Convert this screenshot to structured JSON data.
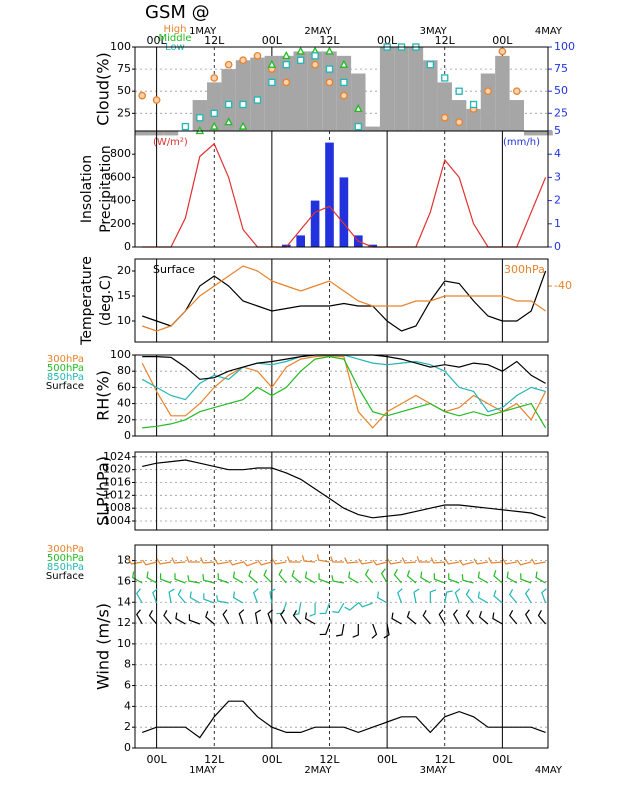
{
  "title": "GSM  @",
  "time": {
    "x": [
      -3,
      0,
      3,
      6,
      9,
      12,
      15,
      18,
      21,
      24,
      27,
      30,
      33,
      36,
      39,
      42,
      45,
      48,
      51,
      54,
      57,
      60,
      63,
      66,
      69,
      72,
      75,
      78,
      81
    ],
    "xlim": [
      -4.5,
      81.5
    ],
    "xticks": [
      {
        "value": 0,
        "label": "00L"
      },
      {
        "value": 12,
        "label": "12L"
      },
      {
        "value": 24,
        "label": "00L"
      },
      {
        "value": 36,
        "label": "12L"
      },
      {
        "value": 48,
        "label": "00L"
      },
      {
        "value": 60,
        "label": "12L"
      },
      {
        "value": 72,
        "label": "00L"
      }
    ],
    "day_labels": [
      {
        "value": 12,
        "label": "1MAY"
      },
      {
        "value": 36,
        "label": "2MAY"
      },
      {
        "value": 60,
        "label": "3MAY"
      },
      {
        "value": 84,
        "label": "4MAY"
      }
    ]
  },
  "chart_data": [
    {
      "type": "combo",
      "ylabel": [
        "Cloud(%)"
      ],
      "ylim": [
        5,
        100
      ],
      "yticks": [
        25,
        50,
        75,
        100
      ],
      "y2lim": [
        5,
        100
      ],
      "y2ticks": [
        5,
        25,
        50,
        75,
        100
      ],
      "y2_color": "#2233dd",
      "grid": true,
      "legend": "top",
      "series": [
        {
          "type": "bar",
          "color": "#a6a6a6",
          "values": [
            0,
            0,
            0,
            5,
            40,
            60,
            75,
            85,
            88,
            90,
            90,
            95,
            95,
            95,
            90,
            70,
            10,
            100,
            100,
            100,
            85,
            60,
            40,
            30,
            70,
            90,
            40,
            0,
            0
          ]
        },
        {
          "type": "scatter",
          "name": "High",
          "color": "#e8822a",
          "marker": "circle",
          "values": [
            45,
            40,
            null,
            null,
            null,
            65,
            80,
            85,
            90,
            75,
            60,
            85,
            80,
            60,
            45,
            null,
            null,
            null,
            null,
            null,
            null,
            20,
            15,
            30,
            50,
            95,
            50,
            null,
            null
          ]
        },
        {
          "type": "scatter",
          "name": "Middle",
          "color": "#22bb22",
          "marker": "triangle",
          "values": [
            null,
            null,
            null,
            null,
            5,
            10,
            15,
            10,
            null,
            80,
            90,
            95,
            95,
            95,
            80,
            30,
            null,
            null,
            null,
            null,
            null,
            null,
            null,
            null,
            null,
            null,
            null,
            null,
            null
          ]
        },
        {
          "type": "scatter",
          "name": "Low",
          "color": "#22b5b5",
          "marker": "square",
          "values": [
            null,
            null,
            null,
            10,
            20,
            25,
            35,
            35,
            40,
            60,
            80,
            85,
            90,
            75,
            60,
            10,
            null,
            100,
            100,
            100,
            80,
            65,
            50,
            35,
            null,
            null,
            null,
            null,
            null
          ]
        }
      ]
    },
    {
      "type": "combo",
      "ylabel": [
        "Insolation",
        "Precipitation"
      ],
      "ylim": [
        0,
        1000
      ],
      "yticks": [
        0,
        200,
        400,
        600,
        800
      ],
      "y2lim": [
        0,
        5
      ],
      "y2ticks": [
        0,
        1,
        2,
        3,
        4
      ],
      "y2_color": "#2233dd",
      "grid": false,
      "annotations": [
        {
          "text": "(W/m²)",
          "color": "#e03030",
          "side": "left"
        },
        {
          "text": "(mm/h)",
          "color": "#2233dd",
          "side": "right"
        }
      ],
      "series": [
        {
          "type": "bar",
          "axis": "y2",
          "color": "#2233dd",
          "values": [
            0,
            0,
            0,
            0,
            0,
            0,
            0,
            0,
            0,
            0,
            0.1,
            0.5,
            2,
            4.5,
            3,
            0.5,
            0.1,
            0,
            0,
            0,
            0,
            0,
            0,
            0,
            0,
            0,
            0,
            0,
            0
          ]
        },
        {
          "type": "line",
          "color": "#e03030",
          "values": [
            0,
            0,
            0,
            250,
            780,
            890,
            600,
            150,
            0,
            0,
            0,
            150,
            300,
            350,
            200,
            50,
            0,
            0,
            0,
            0,
            300,
            750,
            600,
            200,
            0,
            0,
            0,
            300,
            600
          ]
        }
      ]
    },
    {
      "type": "combo",
      "ylabel": [
        "Temperature",
        "(deg.C)"
      ],
      "ylim": [
        5.8,
        22.4
      ],
      "yticks": [
        10,
        15,
        20
      ],
      "y2lim": [
        -51.2,
        -34.6
      ],
      "y2ticks": [
        -40
      ],
      "y2_color": "#e8822a",
      "grid": false,
      "legend": "inside",
      "series": [
        {
          "type": "line",
          "name": "Surface",
          "color": "#000000",
          "values": [
            11,
            10,
            9,
            12,
            17,
            19,
            17,
            14,
            13,
            12,
            12.5,
            13,
            13,
            13,
            13.5,
            13,
            13,
            10,
            8,
            9,
            14,
            18,
            17.5,
            14,
            11,
            10,
            10,
            12,
            20
          ]
        },
        {
          "type": "line",
          "name": "300hPa",
          "axis": "y2",
          "color": "#e8822a",
          "values": [
            -48,
            -49,
            -48,
            -45,
            -42,
            -40,
            -38,
            -36,
            -37,
            -39,
            -40,
            -41,
            -40,
            -39,
            -41,
            -43,
            -44,
            -44,
            -44,
            -43,
            -43,
            -42,
            -42,
            -42,
            -42,
            -42,
            -43,
            -43,
            -45
          ]
        }
      ]
    },
    {
      "type": "combo",
      "ylabel": [
        "RH(%)"
      ],
      "ylim": [
        0,
        100
      ],
      "yticks": [
        0,
        20,
        40,
        60,
        80,
        100
      ],
      "grid": true,
      "legend": "left",
      "series": [
        {
          "type": "line",
          "name": "300hPa",
          "color": "#e8822a",
          "values": [
            90,
            55,
            25,
            25,
            40,
            60,
            75,
            85,
            80,
            60,
            85,
            95,
            98,
            99,
            98,
            30,
            10,
            30,
            40,
            50,
            40,
            30,
            35,
            50,
            40,
            30,
            40,
            20,
            55
          ]
        },
        {
          "type": "line",
          "name": "500hPa",
          "color": "#22bb22",
          "values": [
            10,
            12,
            15,
            20,
            30,
            35,
            40,
            45,
            60,
            50,
            60,
            80,
            95,
            98,
            95,
            60,
            30,
            25,
            30,
            35,
            40,
            30,
            25,
            30,
            25,
            30,
            35,
            40,
            10
          ]
        },
        {
          "type": "line",
          "name": "850hPa",
          "color": "#22b5b5",
          "values": [
            70,
            60,
            50,
            45,
            65,
            75,
            70,
            85,
            90,
            88,
            92,
            98,
            100,
            100,
            100,
            95,
            90,
            88,
            90,
            92,
            88,
            80,
            60,
            55,
            30,
            35,
            50,
            60,
            55
          ]
        },
        {
          "type": "line",
          "name": "Surface",
          "color": "#000000",
          "values": [
            98,
            98,
            97,
            85,
            70,
            72,
            80,
            85,
            90,
            92,
            95,
            98,
            100,
            100,
            100,
            100,
            100,
            98,
            95,
            90,
            85,
            88,
            85,
            90,
            88,
            80,
            92,
            75,
            65
          ]
        }
      ]
    },
    {
      "type": "combo",
      "ylabel": [
        "SLP(hPa)"
      ],
      "ylim": [
        1001.2,
        1025.5
      ],
      "yticks": [
        1004,
        1008,
        1012,
        1016,
        1020,
        1024
      ],
      "grid": true,
      "series": [
        {
          "type": "line",
          "color": "#000000",
          "values": [
            1021,
            1022,
            1022.5,
            1023,
            1022,
            1021,
            1020,
            1020,
            1020.5,
            1020.5,
            1019,
            1017,
            1014,
            1011,
            1008,
            1006,
            1005,
            1005.5,
            1006,
            1007,
            1008,
            1009,
            1009,
            1008.5,
            1008,
            1007.5,
            1007,
            1006.5,
            1005
          ]
        }
      ]
    },
    {
      "type": "combo",
      "ylabel": [
        "Wind  (m/s)"
      ],
      "ylim": [
        0,
        19.5
      ],
      "yticks": [
        0,
        2,
        4,
        6,
        8,
        10,
        12,
        14,
        16,
        18
      ],
      "grid": true,
      "legend": "left",
      "series": [
        {
          "type": "barb",
          "name": "300hPa",
          "color": "#e8822a",
          "directions": [
            260,
            255,
            260,
            265,
            270,
            265,
            260,
            255,
            250,
            255,
            260,
            270,
            275,
            280,
            270,
            265,
            260,
            255,
            260,
            265,
            270,
            265,
            260,
            255,
            260,
            265,
            260,
            255,
            260
          ]
        },
        {
          "type": "barb",
          "name": "500hPa",
          "color": "#22bb22",
          "directions": [
            300,
            300,
            290,
            290,
            280,
            285,
            290,
            300,
            310,
            315,
            320,
            310,
            300,
            290,
            280,
            300,
            320,
            330,
            320,
            310,
            300,
            290,
            290,
            285,
            300,
            310,
            300,
            290,
            300
          ]
        },
        {
          "type": "barb",
          "name": "850hPa",
          "color": "#22b5b5",
          "directions": [
            330,
            340,
            350,
            320,
            300,
            290,
            280,
            300,
            340,
            350,
            200,
            190,
            180,
            200,
            210,
            230,
            250,
            300,
            340,
            350,
            0,
            10,
            340,
            320,
            300,
            310,
            320,
            330,
            340
          ]
        },
        {
          "type": "line",
          "name": "Surface",
          "color": "#000000",
          "values": [
            1.5,
            2,
            2,
            2,
            1,
            3,
            4.5,
            4.5,
            3,
            2,
            1.5,
            1.5,
            2,
            2,
            2,
            1.5,
            2,
            2.5,
            3,
            3,
            1.5,
            3,
            3.5,
            3,
            2,
            2,
            2,
            2,
            1.5
          ],
          "directions": [
            330,
            320,
            320,
            300,
            290,
            310,
            330,
            340,
            350,
            340,
            330,
            320,
            300,
            200,
            190,
            180,
            160,
            170,
            300,
            310,
            320,
            330,
            330,
            320,
            310,
            300,
            320,
            330,
            320
          ]
        }
      ]
    }
  ]
}
